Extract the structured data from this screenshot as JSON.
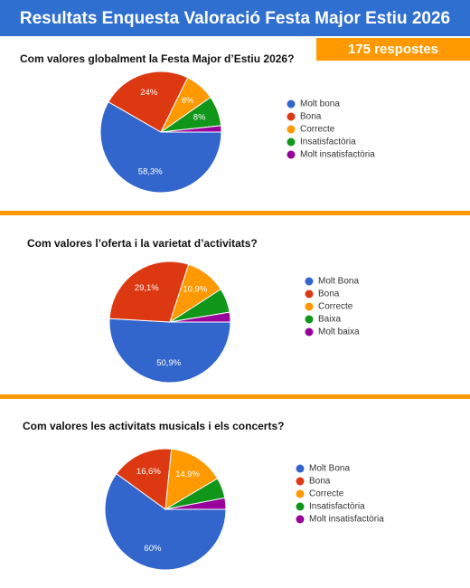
{
  "header": {
    "title": "Resultats Enquesta Valoració Festa Major Estiu 2026",
    "badge": "175 respostes"
  },
  "chart_data": [
    {
      "type": "pie",
      "title": "Com valores globalment la Festa Major d’Estiu 2026?",
      "categories": [
        "Molt bona",
        "Bona",
        "Correcte",
        "Insatisfactòria",
        "Molt insatisfactòria"
      ],
      "values": [
        58.3,
        24,
        8,
        8,
        1.7
      ],
      "value_labels": [
        "58,3%",
        "24%",
        "8%",
        "8%",
        null
      ],
      "colors": [
        "#3366cc",
        "#dc3912",
        "#ff9900",
        "#109618",
        "#990099"
      ]
    },
    {
      "type": "pie",
      "title": "Com valores l’oferta i la varietat d’activitats?",
      "categories": [
        "Molt Bona",
        "Bona",
        "Correcte",
        "Baixa",
        "Molt baixa"
      ],
      "values": [
        50.9,
        29.1,
        10.9,
        6.5,
        2.6
      ],
      "value_labels": [
        "50,9%",
        "29,1%",
        "10,9%",
        null,
        null
      ],
      "colors": [
        "#3366cc",
        "#dc3912",
        "#ff9900",
        "#109618",
        "#990099"
      ]
    },
    {
      "type": "pie",
      "title": "Com valores les activitats musicals i els concerts?",
      "categories": [
        "Molt Bona",
        "Bona",
        "Correcte",
        "Insatisfactòria",
        "Molt insatisfactòria"
      ],
      "values": [
        60,
        16.6,
        14.9,
        5.5,
        3
      ],
      "value_labels": [
        "60%",
        "16,6%",
        "14,9%",
        null,
        null
      ],
      "colors": [
        "#3366cc",
        "#dc3912",
        "#ff9900",
        "#109618",
        "#990099"
      ]
    }
  ]
}
